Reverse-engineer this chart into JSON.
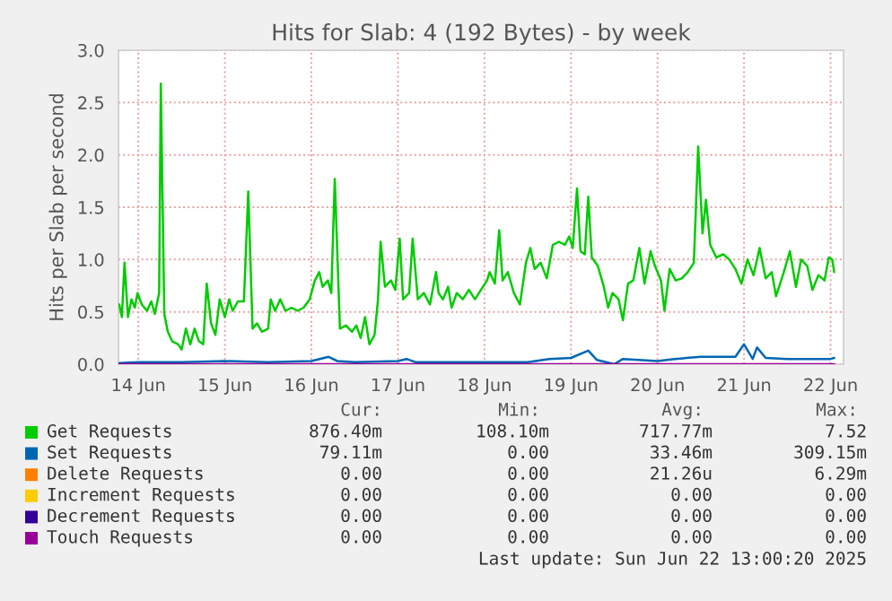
{
  "chart_data": {
    "type": "line",
    "title": "Hits for Slab: 4 (192 Bytes) - by week",
    "ylabel": "Hits per Slab per second",
    "xlim": [
      "2025-06-14T06:29",
      "2025-06-22T15:36"
    ],
    "ylim": [
      0,
      3
    ],
    "xticks": [
      {
        "value": "2025-06-14T12:00",
        "label": "14 Jun"
      },
      {
        "value": "2025-06-15T12:00",
        "label": "15 Jun"
      },
      {
        "value": "2025-06-16T12:00",
        "label": "16 Jun"
      },
      {
        "value": "2025-06-17T12:00",
        "label": "17 Jun"
      },
      {
        "value": "2025-06-18T12:00",
        "label": "18 Jun"
      },
      {
        "value": "2025-06-19T12:00",
        "label": "19 Jun"
      },
      {
        "value": "2025-06-20T12:00",
        "label": "20 Jun"
      },
      {
        "value": "2025-06-21T12:00",
        "label": "21 Jun"
      },
      {
        "value": "2025-06-22T12:00",
        "label": "22 Jun"
      }
    ],
    "yticks": [
      {
        "value": 0,
        "label": "0.0"
      },
      {
        "value": 0.5,
        "label": "0.5"
      },
      {
        "value": 1,
        "label": "1.0"
      },
      {
        "value": 1.5,
        "label": "1.5"
      },
      {
        "value": 2,
        "label": "2.0"
      },
      {
        "value": 2.5,
        "label": "2.5"
      },
      {
        "value": 3,
        "label": "3.0"
      }
    ],
    "grid": true,
    "legend": "bottom",
    "marker": "none",
    "line_style": "solid",
    "series": [
      {
        "name": "Get Requests",
        "color": "#00cc00",
        "x": [
          "2025-06-14T06:43",
          "2025-06-14T07:26",
          "2025-06-14T08:10",
          "2025-06-14T09:07",
          "2025-06-14T10:05",
          "2025-06-14T11:02",
          "2025-06-14T11:46",
          "2025-06-14T12:58",
          "2025-06-14T14:24",
          "2025-06-14T15:36",
          "2025-06-14T16:34",
          "2025-06-14T17:46",
          "2025-06-14T18:14",
          "2025-06-14T19:12",
          "2025-06-14T20:10",
          "2025-06-14T21:22",
          "2025-06-14T23:02",
          "2025-06-15T00:00",
          "2025-06-15T01:12",
          "2025-06-15T02:24",
          "2025-06-15T03:36",
          "2025-06-15T04:48",
          "2025-06-15T06:00",
          "2025-06-15T06:58",
          "2025-06-15T08:10",
          "2025-06-15T09:22",
          "2025-06-15T10:34",
          "2025-06-15T12:00",
          "2025-06-15T13:12",
          "2025-06-15T14:10",
          "2025-06-15T15:36",
          "2025-06-15T17:17",
          "2025-06-15T18:29",
          "2025-06-15T19:41",
          "2025-06-15T20:53",
          "2025-06-15T22:19",
          "2025-06-16T00:00",
          "2025-06-16T00:43",
          "2025-06-16T01:55",
          "2025-06-16T03:22",
          "2025-06-16T04:48",
          "2025-06-16T06:29",
          "2025-06-16T08:10",
          "2025-06-16T09:50",
          "2025-06-16T11:31",
          "2025-06-16T12:58",
          "2025-06-16T14:10",
          "2025-06-16T15:07",
          "2025-06-16T16:34",
          "2025-06-16T17:31",
          "2025-06-16T18:29",
          "2025-06-16T19:55",
          "2025-06-16T21:36",
          "2025-06-16T23:17",
          "2025-06-17T00:29",
          "2025-06-17T01:41",
          "2025-06-17T02:53",
          "2025-06-17T04:05",
          "2025-06-17T05:31",
          "2025-06-17T06:29",
          "2025-06-17T07:12",
          "2025-06-17T08:24",
          "2025-06-17T10:05",
          "2025-06-17T11:17",
          "2025-06-17T12:29",
          "2025-06-17T13:26",
          "2025-06-17T15:07",
          "2025-06-17T16:05",
          "2025-06-17T17:31",
          "2025-06-17T19:12",
          "2025-06-17T20:53",
          "2025-06-17T22:34",
          "2025-06-17T23:17",
          "2025-06-18T00:29",
          "2025-06-18T01:55",
          "2025-06-18T02:53",
          "2025-06-18T04:19",
          "2025-06-18T06:00",
          "2025-06-18T07:41",
          "2025-06-18T09:22",
          "2025-06-18T11:02",
          "2025-06-18T12:43",
          "2025-06-18T13:26",
          "2025-06-18T14:53",
          "2025-06-18T16:05",
          "2025-06-18T17:02",
          "2025-06-18T18:29",
          "2025-06-18T20:10",
          "2025-06-18T21:50",
          "2025-06-18T23:31",
          "2025-06-19T00:43",
          "2025-06-19T01:55",
          "2025-06-19T03:36",
          "2025-06-19T05:17",
          "2025-06-19T06:58",
          "2025-06-19T08:38",
          "2025-06-19T10:19",
          "2025-06-19T11:31",
          "2025-06-19T12:29",
          "2025-06-19T13:41",
          "2025-06-19T14:38",
          "2025-06-19T15:50",
          "2025-06-19T16:48",
          "2025-06-19T17:46",
          "2025-06-19T19:26",
          "2025-06-19T21:07",
          "2025-06-19T22:19",
          "2025-06-19T23:31",
          "2025-06-20T01:12",
          "2025-06-20T02:24",
          "2025-06-20T03:50",
          "2025-06-20T05:17",
          "2025-06-20T06:58",
          "2025-06-20T08:24",
          "2025-06-20T10:05",
          "2025-06-20T11:17",
          "2025-06-20T12:58",
          "2025-06-20T13:55",
          "2025-06-20T15:22",
          "2025-06-20T17:02",
          "2025-06-20T18:43",
          "2025-06-20T20:24",
          "2025-06-20T22:05",
          "2025-06-20T23:17",
          "2025-06-21T00:29",
          "2025-06-21T01:26",
          "2025-06-21T02:38",
          "2025-06-21T04:19",
          "2025-06-21T06:14",
          "2025-06-21T07:55",
          "2025-06-21T09:36",
          "2025-06-21T11:17",
          "2025-06-21T12:58",
          "2025-06-21T14:38",
          "2025-06-21T16:19",
          "2025-06-21T18:00",
          "2025-06-21T19:41",
          "2025-06-21T20:53",
          "2025-06-21T23:02",
          "2025-06-22T00:43",
          "2025-06-22T02:24",
          "2025-06-22T03:50",
          "2025-06-22T05:31",
          "2025-06-22T06:58",
          "2025-06-22T08:38",
          "2025-06-22T10:19",
          "2025-06-22T11:31",
          "2025-06-22T12:29",
          "2025-06-22T13:00"
        ],
        "values": [
          0.57,
          0.45,
          0.97,
          0.45,
          0.62,
          0.54,
          0.68,
          0.57,
          0.51,
          0.6,
          0.48,
          0.68,
          2.68,
          0.48,
          0.31,
          0.22,
          0.19,
          0.14,
          0.34,
          0.19,
          0.34,
          0.22,
          0.19,
          0.77,
          0.39,
          0.28,
          0.62,
          0.45,
          0.62,
          0.51,
          0.6,
          0.6,
          1.65,
          0.34,
          0.39,
          0.31,
          0.34,
          0.62,
          0.51,
          0.62,
          0.51,
          0.54,
          0.51,
          0.54,
          0.62,
          0.8,
          0.88,
          0.74,
          0.8,
          0.68,
          1.77,
          0.34,
          0.37,
          0.31,
          0.37,
          0.25,
          0.45,
          0.19,
          0.28,
          0.62,
          1.17,
          0.74,
          0.8,
          0.71,
          1.2,
          0.62,
          0.68,
          1.2,
          0.62,
          0.68,
          0.57,
          0.88,
          0.68,
          0.62,
          0.74,
          0.54,
          0.68,
          0.62,
          0.71,
          0.62,
          0.71,
          0.8,
          0.88,
          0.77,
          1.28,
          0.8,
          0.88,
          0.68,
          0.57,
          0.97,
          1.11,
          0.91,
          0.97,
          0.82,
          1.14,
          1.17,
          1.14,
          1.22,
          1.11,
          1.68,
          1.08,
          1.05,
          1.6,
          1.02,
          0.94,
          0.74,
          0.54,
          0.68,
          0.62,
          0.42,
          0.77,
          0.8,
          1.11,
          0.77,
          1.08,
          0.94,
          0.8,
          0.51,
          0.91,
          0.8,
          0.82,
          0.88,
          0.97,
          2.08,
          1.25,
          1.57,
          1.14,
          1.02,
          1.05,
          1.0,
          0.91,
          0.77,
          1.0,
          0.85,
          1.11,
          0.82,
          0.88,
          0.65,
          0.88,
          1.08,
          0.74,
          1.0,
          0.94,
          0.71,
          0.85,
          0.8,
          1.02,
          1.0,
          0.88
        ]
      },
      {
        "name": "Set Requests",
        "color": "#0066b3",
        "x": [
          "2025-06-14T06:43",
          "2025-06-14T12:00",
          "2025-06-15T00:00",
          "2025-06-15T12:00",
          "2025-06-16T00:00",
          "2025-06-16T12:00",
          "2025-06-16T16:48",
          "2025-06-16T19:12",
          "2025-06-17T00:00",
          "2025-06-17T12:00",
          "2025-06-17T14:24",
          "2025-06-17T16:48",
          "2025-06-18T00:00",
          "2025-06-18T12:00",
          "2025-06-19T00:00",
          "2025-06-19T06:00",
          "2025-06-19T12:00",
          "2025-06-19T16:48",
          "2025-06-19T19:12",
          "2025-06-20T00:00",
          "2025-06-20T02:24",
          "2025-06-20T12:00",
          "2025-06-20T16:48",
          "2025-06-21T00:00",
          "2025-06-21T09:36",
          "2025-06-21T12:00",
          "2025-06-21T14:24",
          "2025-06-21T15:36",
          "2025-06-21T18:00",
          "2025-06-22T00:00",
          "2025-06-22T12:00",
          "2025-06-22T13:00"
        ],
        "values": [
          0.01,
          0.02,
          0.02,
          0.03,
          0.02,
          0.03,
          0.07,
          0.03,
          0.02,
          0.03,
          0.05,
          0.02,
          0.02,
          0.02,
          0.02,
          0.05,
          0.06,
          0.13,
          0.04,
          0.0,
          0.05,
          0.03,
          0.05,
          0.07,
          0.07,
          0.19,
          0.05,
          0.16,
          0.06,
          0.05,
          0.05,
          0.06
        ]
      },
      {
        "name": "Delete Requests",
        "color": "#ff8000"
      },
      {
        "name": "Increment Requests",
        "color": "#ffcc00"
      },
      {
        "name": "Decrement Requests",
        "color": "#330099"
      },
      {
        "name": "Touch Requests",
        "color": "#990099",
        "x": [
          "2025-06-14T06:43",
          "2025-06-22T13:00"
        ],
        "values": [
          0,
          0
        ]
      }
    ],
    "annotations": [
      "Cur:",
      "Min:",
      "Avg:",
      "Max:",
      "876.40m",
      "108.10m",
      "717.77m",
      "7.52",
      "79.11m",
      "0.00",
      "33.46m",
      "309.15m",
      "0.00",
      "0.00",
      "21.26u",
      "6.29m",
      "0.00",
      "0.00",
      "0.00",
      "0.00",
      "0.00",
      "0.00",
      "0.00",
      "0.00",
      "0.00",
      "0.00",
      "0.00",
      "0.00",
      "Last update: Sun Jun 22 13:00:20 2025"
    ]
  }
}
